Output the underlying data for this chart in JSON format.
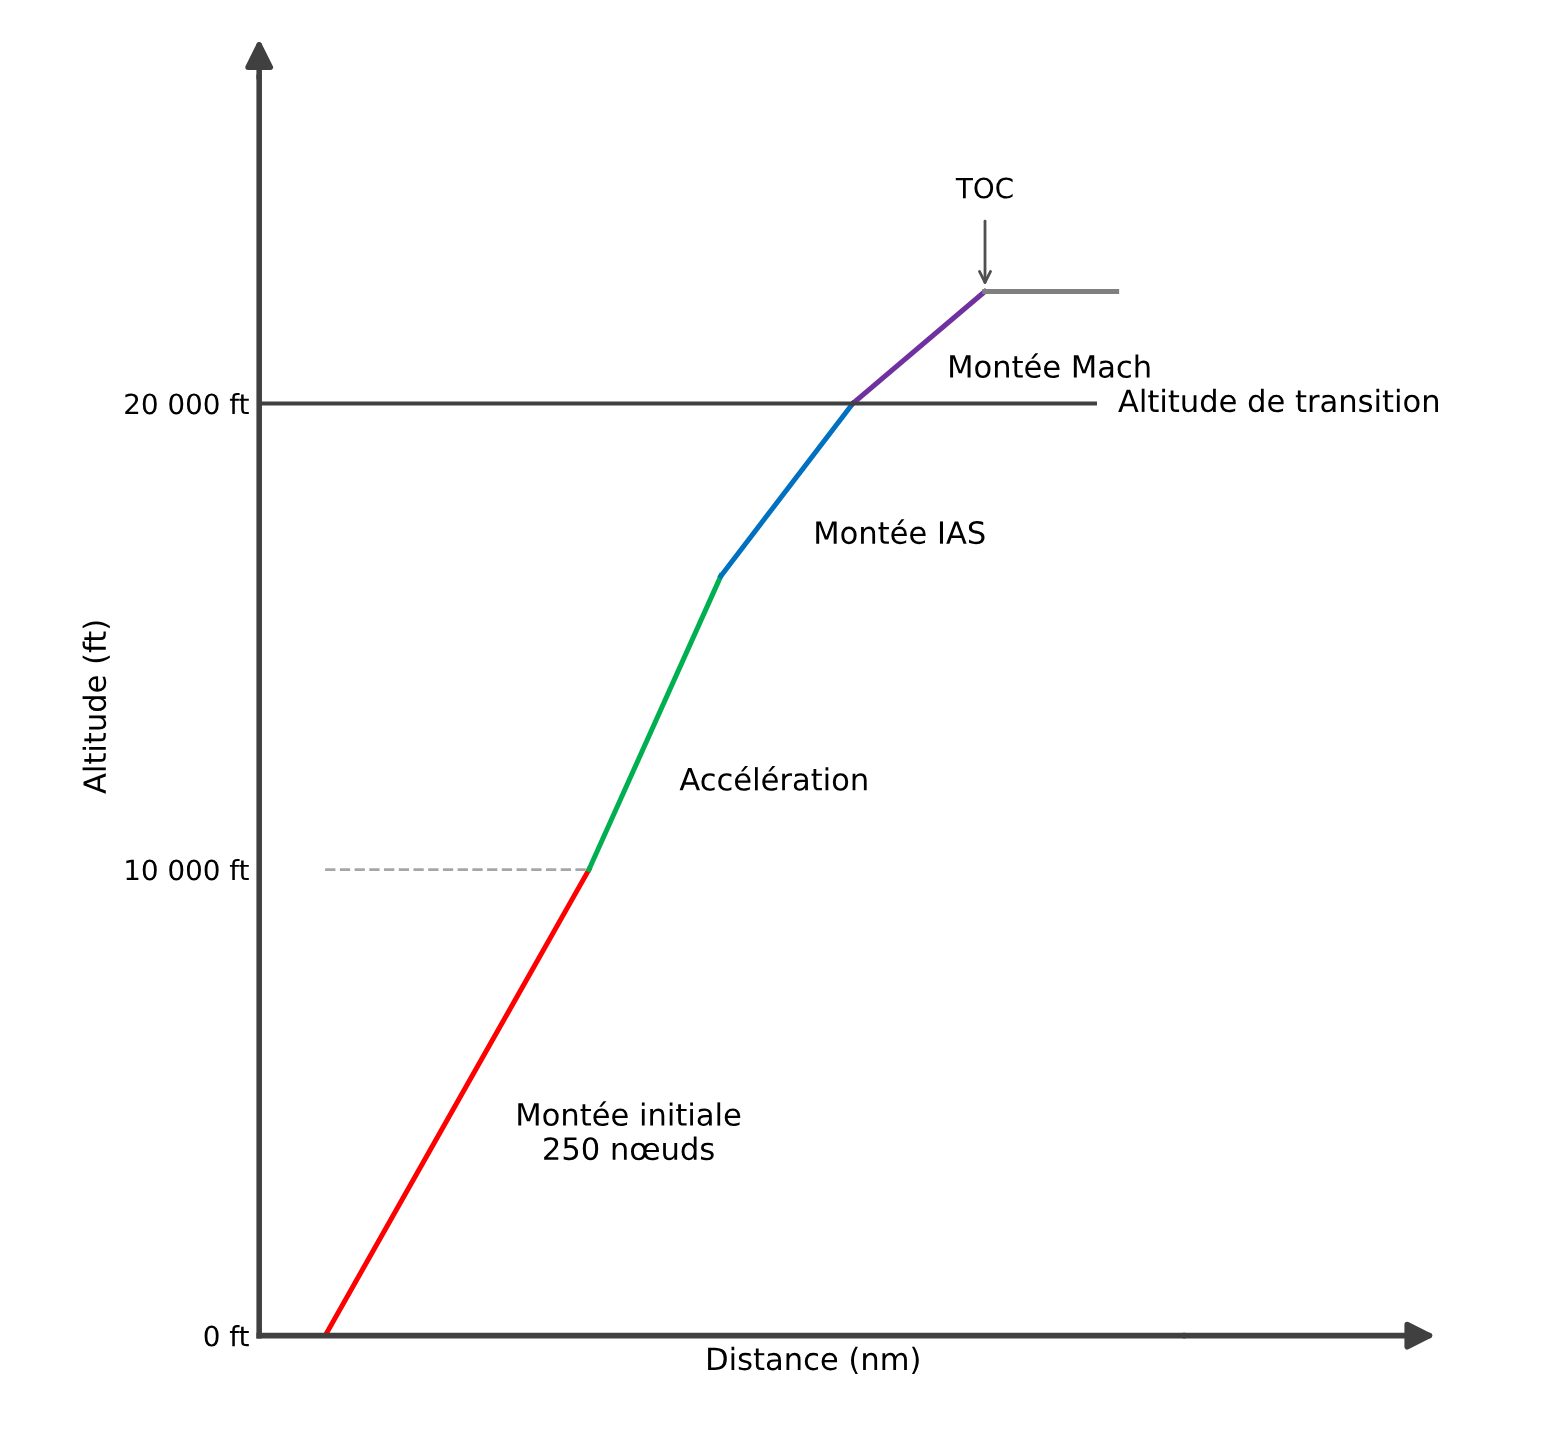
{
  "chart_data": {
    "type": "line",
    "xlabel": "Distance (nm)",
    "ylabel": "Altitude (ft)",
    "categories": [
      null,
      null,
      null,
      null,
      null,
      null,
      null
    ],
    "series": [
      {
        "values": [
          0,
          5000,
          10000,
          null,
          null,
          null,
          null
        ],
        "color": "#ff0000"
      },
      {
        "values": [
          null,
          null,
          10000,
          16300,
          null,
          null,
          null
        ],
        "color": "#00b050"
      },
      {
        "values": [
          null,
          null,
          null,
          16300,
          20000,
          null,
          null
        ],
        "color": "#0070c0"
      },
      {
        "values": [
          null,
          null,
          null,
          null,
          20000,
          22400,
          null
        ],
        "color": "#7030a0"
      },
      {
        "values": [
          null,
          null,
          null,
          null,
          null,
          22400,
          22400
        ],
        "color": "#7f7f7f"
      },
      {
        "values": [
          10000,
          10000,
          10000,
          null,
          null,
          null,
          null
        ],
        "color": "#a6a6a6",
        "line_style": "dashed"
      }
    ],
    "ref_lines": [
      {
        "axis": "y",
        "value": 20000,
        "label": "Altitude de transition",
        "color": "#404040"
      }
    ],
    "annotations": [
      "Montée initiale\n250 nœuds",
      "Accélération",
      "Montée IAS",
      "Montée Mach",
      "TOC"
    ],
    "ylim": [
      0,
      27000
    ],
    "yticks": [
      {
        "value": 0,
        "label": "0 ft"
      },
      {
        "value": 10000,
        "label": "10 000 ft"
      },
      {
        "value": 20000,
        "label": "20 000 ft"
      }
    ],
    "tick_labels": "y",
    "grid": false,
    "legend": false
  }
}
